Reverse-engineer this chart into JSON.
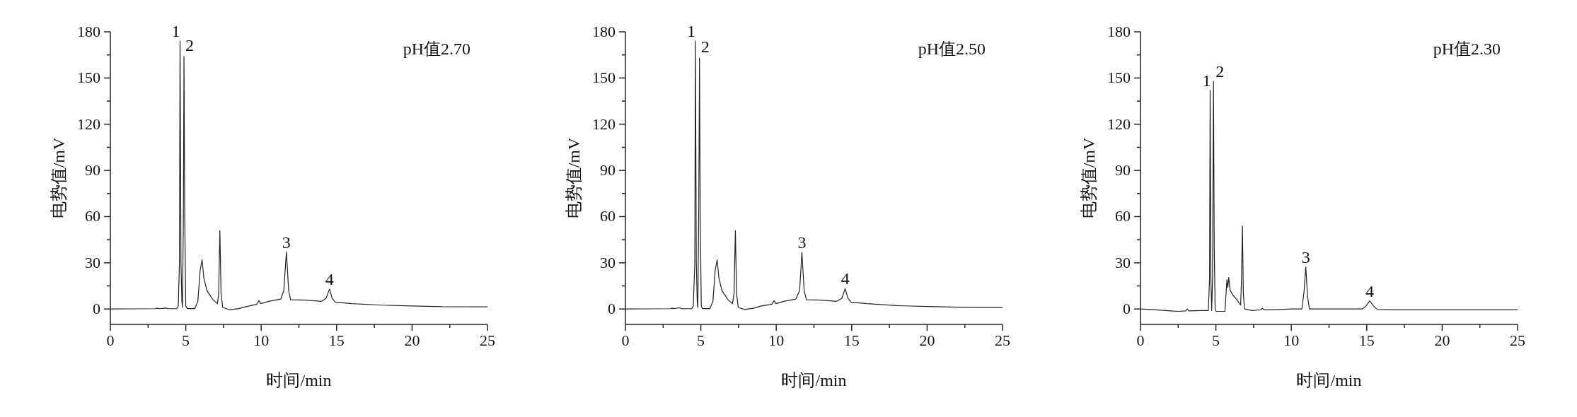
{
  "chart_data": [
    {
      "type": "line",
      "title": "pH值2.70",
      "xlabel": "时间/min",
      "ylabel": "电势值/mV",
      "xlim": [
        0,
        25
      ],
      "ylim": [
        -10,
        180
      ],
      "xticks": [
        0,
        {
          "value": 2.5,
          "label": null
        },
        5,
        {
          "value": 7.5,
          "label": null
        },
        10,
        {
          "value": 12.5,
          "label": null
        },
        15,
        {
          "value": 17.5,
          "label": null
        },
        20,
        {
          "value": 22.5,
          "label": null
        },
        25
      ],
      "yticks": [
        0,
        {
          "value": 15,
          "label": null
        },
        30,
        {
          "value": 45,
          "label": null
        },
        60,
        {
          "value": 75,
          "label": null
        },
        90,
        {
          "value": 105,
          "label": null
        },
        120,
        {
          "value": 135,
          "label": null
        },
        150,
        {
          "value": 165,
          "label": null
        },
        180
      ],
      "grid": false,
      "legend": false,
      "marker": "none",
      "line_style": "solid",
      "series": [
        {
          "color": "#222222",
          "x": [
            0,
            3.0,
            3.1,
            3.2,
            3.7,
            3.8,
            4.4,
            4.5,
            4.58,
            4.62,
            4.68,
            4.74,
            4.78,
            4.84,
            4.88,
            4.93,
            5.0,
            5.1,
            5.6,
            5.8,
            5.95,
            6.08,
            6.2,
            6.4,
            6.8,
            7.1,
            7.18,
            7.26,
            7.34,
            7.45,
            7.9,
            8.5,
            9.0,
            9.7,
            9.85,
            9.95,
            10.5,
            11.3,
            11.5,
            11.67,
            11.82,
            11.95,
            13,
            14.0,
            14.3,
            14.53,
            14.7,
            14.9,
            16,
            18,
            20,
            22,
            25
          ],
          "values": [
            0,
            0.2,
            0.6,
            0.2,
            0.6,
            0.2,
            0.3,
            2,
            30,
            174,
            30,
            5,
            1,
            60,
            164,
            60,
            2,
            0.3,
            0.3,
            5,
            25,
            32,
            20,
            12,
            6,
            3.5,
            10,
            51,
            10,
            1,
            -0.5,
            0.3,
            1.5,
            3,
            5.5,
            3.5,
            5,
            6.5,
            12,
            37,
            12,
            6,
            5.8,
            5,
            7,
            13,
            7,
            4.5,
            3.5,
            2.5,
            2,
            1.5,
            1.4
          ]
        }
      ],
      "annotations": [
        {
          "text": "1",
          "x": 4.62,
          "y": 174
        },
        {
          "text": "2",
          "x": 4.88,
          "y": 164
        },
        {
          "text": "3",
          "x": 11.67,
          "y": 37
        },
        {
          "text": "4",
          "x": 14.53,
          "y": 13
        }
      ]
    },
    {
      "type": "line",
      "title": "pH值2.50",
      "xlabel": "时间/min",
      "ylabel": "电势值/mV",
      "xlim": [
        0,
        25
      ],
      "ylim": [
        -10,
        180
      ],
      "xticks": [
        0,
        {
          "value": 2.5,
          "label": null
        },
        5,
        {
          "value": 7.5,
          "label": null
        },
        10,
        {
          "value": 12.5,
          "label": null
        },
        15,
        {
          "value": 17.5,
          "label": null
        },
        20,
        {
          "value": 22.5,
          "label": null
        },
        25
      ],
      "yticks": [
        0,
        {
          "value": 15,
          "label": null
        },
        30,
        {
          "value": 45,
          "label": null
        },
        60,
        {
          "value": 75,
          "label": null
        },
        90,
        {
          "value": 105,
          "label": null
        },
        120,
        {
          "value": 135,
          "label": null
        },
        150,
        {
          "value": 165,
          "label": null
        },
        180
      ],
      "grid": false,
      "legend": false,
      "marker": "none",
      "line_style": "solid",
      "series": [
        {
          "color": "#222222",
          "x": [
            0,
            3.0,
            3.1,
            3.2,
            3.6,
            3.7,
            4.4,
            4.5,
            4.6,
            4.64,
            4.7,
            4.76,
            4.8,
            4.86,
            4.91,
            4.96,
            5.03,
            5.1,
            5.6,
            5.8,
            5.95,
            6.08,
            6.2,
            6.4,
            6.8,
            7.1,
            7.2,
            7.29,
            7.37,
            7.48,
            7.9,
            8.5,
            9.0,
            9.7,
            9.87,
            9.97,
            10.5,
            11.3,
            11.55,
            11.7,
            11.85,
            12.0,
            13,
            14.0,
            14.35,
            14.57,
            14.75,
            14.95,
            16,
            18,
            20,
            22,
            25
          ],
          "values": [
            0,
            0.2,
            0.6,
            0.2,
            0.8,
            0.2,
            0.3,
            2,
            30,
            174,
            30,
            5,
            1,
            60,
            163,
            60,
            2,
            0.3,
            0.3,
            5,
            25,
            32,
            20,
            12,
            6,
            3.5,
            10,
            51,
            10,
            1,
            -0.3,
            0.5,
            2,
            3,
            5.4,
            3.5,
            5,
            6.5,
            12,
            36.7,
            12,
            6,
            5.8,
            5,
            7,
            13.2,
            7,
            4.5,
            3.5,
            2.2,
            1.6,
            1.2,
            1
          ]
        }
      ],
      "annotations": [
        {
          "text": "1",
          "x": 4.64,
          "y": 174
        },
        {
          "text": "2",
          "x": 4.91,
          "y": 163
        },
        {
          "text": "3",
          "x": 11.7,
          "y": 36.7
        },
        {
          "text": "4",
          "x": 14.57,
          "y": 13.2
        }
      ]
    },
    {
      "type": "line",
      "title": "pH值2.30",
      "xlabel": "时间/min",
      "ylabel": "电势值/mV",
      "xlim": [
        0,
        25
      ],
      "ylim": [
        -10,
        180
      ],
      "xticks": [
        0,
        {
          "value": 2.5,
          "label": null
        },
        5,
        {
          "value": 7.5,
          "label": null
        },
        10,
        {
          "value": 12.5,
          "label": null
        },
        15,
        {
          "value": 17.5,
          "label": null
        },
        20,
        {
          "value": 22.5,
          "label": null
        },
        25
      ],
      "yticks": [
        0,
        {
          "value": 15,
          "label": null
        },
        30,
        {
          "value": 45,
          "label": null
        },
        60,
        {
          "value": 75,
          "label": null
        },
        90,
        {
          "value": 105,
          "label": null
        },
        120,
        {
          "value": 135,
          "label": null
        },
        150,
        {
          "value": 165,
          "label": null
        },
        180
      ],
      "grid": false,
      "legend": false,
      "marker": "none",
      "line_style": "solid",
      "series": [
        {
          "color": "#222222",
          "x": [
            0,
            1.0,
            2.0,
            2.5,
            3.0,
            3.1,
            3.2,
            4.0,
            4.5,
            4.58,
            4.62,
            4.67,
            4.72,
            4.78,
            4.84,
            4.89,
            4.95,
            5.02,
            5.3,
            5.6,
            5.73,
            5.79,
            5.85,
            5.95,
            6.13,
            6.4,
            6.64,
            6.7,
            6.76,
            6.82,
            6.9,
            7.4,
            8.0,
            8.08,
            8.2,
            8.8,
            10.0,
            10.7,
            10.85,
            10.96,
            11.08,
            11.2,
            12.5,
            14.7,
            14.95,
            15.2,
            15.45,
            15.7,
            17,
            20,
            25
          ],
          "values": [
            0,
            -0.5,
            -1.2,
            -1.5,
            -1.2,
            0,
            -1.2,
            -1,
            -1,
            20,
            142,
            20,
            -1,
            20,
            148,
            40,
            0,
            -1.5,
            -1.5,
            -1.5,
            19,
            14,
            20.5,
            12,
            9,
            6,
            2.5,
            20,
            54,
            10,
            0,
            -1,
            -0.5,
            0.5,
            -0.5,
            -0.5,
            0,
            0,
            12,
            27.4,
            8,
            0,
            0,
            0,
            2,
            5.2,
            2,
            -0.3,
            -0.5,
            -0.5,
            -0.5
          ]
        }
      ],
      "annotations": [
        {
          "text": "1",
          "x": 4.67,
          "y": 142
        },
        {
          "text": "2",
          "x": 4.89,
          "y": 148
        },
        {
          "text": "3",
          "x": 10.96,
          "y": 27.4
        },
        {
          "text": "4",
          "x": 15.2,
          "y": 5.2
        }
      ]
    }
  ]
}
